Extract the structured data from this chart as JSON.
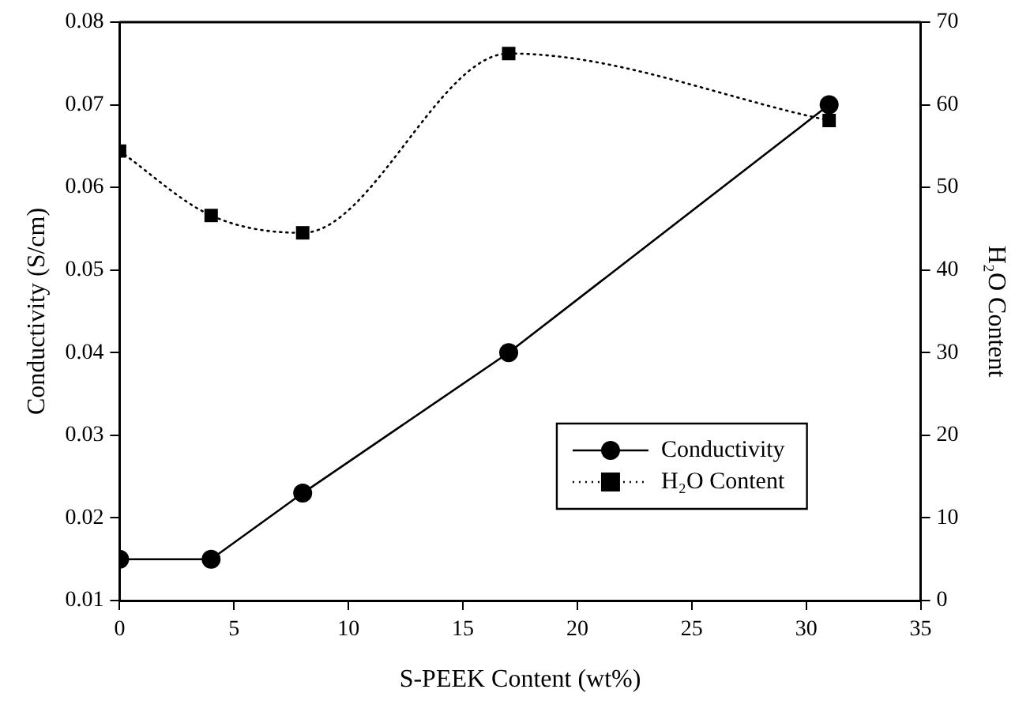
{
  "chart_data": {
    "type": "line",
    "xlabel": "S-PEEK Content (wt%)",
    "ylabel": "Conductivity (S/cm)",
    "y2label": "H₂O Content",
    "xlim": [
      0,
      35
    ],
    "xticks": [
      0,
      5,
      10,
      15,
      20,
      25,
      30,
      35
    ],
    "ylim": [
      0.01,
      0.08
    ],
    "yticks": [
      0.01,
      0.02,
      0.03,
      0.04,
      0.05,
      0.06,
      0.07,
      0.08
    ],
    "y2lim": [
      0,
      70
    ],
    "y2ticks": [
      0,
      10,
      20,
      30,
      40,
      50,
      60,
      70
    ],
    "grid": false,
    "legend": "bottom right",
    "series": [
      {
        "name": "Conductivity",
        "color": "#000000",
        "x": [
          0,
          4,
          8,
          17,
          31
        ],
        "values": [
          0.015,
          0.015,
          0.023,
          0.04,
          0.07
        ],
        "marker": "circle",
        "line_style": "solid"
      },
      {
        "name": "H₂O Content",
        "color": "#000000",
        "x": [
          0,
          4,
          8,
          17,
          31
        ],
        "values": [
          54.4,
          46.6,
          44.5,
          66.2,
          58.1
        ],
        "axis": "y2",
        "marker": "square",
        "line_style": "dotted"
      }
    ]
  }
}
